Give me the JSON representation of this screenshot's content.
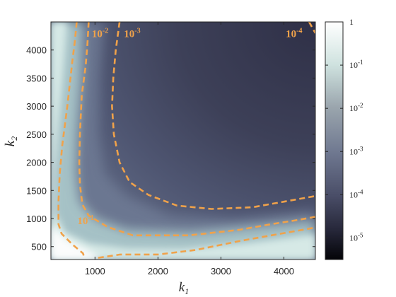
{
  "chart_data": {
    "type": "heatmap",
    "title": "",
    "xlabel": "k",
    "xlabel_sub": "1",
    "ylabel": "k",
    "ylabel_sub": "2",
    "xlim": [
      300,
      4500
    ],
    "ylim": [
      270,
      4500
    ],
    "x_ticks": [
      1000,
      2000,
      3000,
      4000
    ],
    "y_ticks": [
      500,
      1000,
      1500,
      2000,
      2500,
      3000,
      3500,
      4000
    ],
    "colorscale": "log",
    "colorbar": {
      "ticks": [
        {
          "value": 1,
          "base": "1",
          "exp": ""
        },
        {
          "value": 0.1,
          "base": "10",
          "exp": "-1"
        },
        {
          "value": 0.01,
          "base": "10",
          "exp": "-2"
        },
        {
          "value": 0.001,
          "base": "10",
          "exp": "-3"
        },
        {
          "value": 0.0001,
          "base": "10",
          "exp": "-4"
        },
        {
          "value": 1e-05,
          "base": "10",
          "exp": "-5"
        }
      ],
      "min_exp": -5.5,
      "max_exp": 0
    },
    "contour_color": "#f0a24a",
    "contours": [
      {
        "level": 0.1,
        "base": "10",
        "exp": "-1",
        "label_at": [
          720,
          900
        ],
        "points": [
          [
            710,
            4500
          ],
          [
            680,
            4150
          ],
          [
            640,
            3800
          ],
          [
            560,
            3000
          ],
          [
            480,
            2300
          ],
          [
            440,
            1800
          ],
          [
            420,
            1300
          ],
          [
            420,
            900
          ],
          [
            470,
            730
          ],
          [
            640,
            540
          ],
          [
            810,
            380
          ],
          [
            830,
            300
          ]
        ]
      },
      {
        "level": 0.01,
        "base": "10",
        "exp": "-2",
        "label_at": [
          950,
          4230
        ],
        "points": [
          [
            900,
            4500
          ],
          [
            880,
            4100
          ],
          [
            850,
            3700
          ],
          [
            790,
            3200
          ],
          [
            760,
            2500
          ],
          [
            750,
            2000
          ],
          [
            760,
            1600
          ],
          [
            800,
            1250
          ],
          [
            900,
            1050
          ],
          [
            1200,
            850
          ],
          [
            1600,
            700
          ],
          [
            2500,
            700
          ],
          [
            3300,
            800
          ],
          [
            3800,
            900
          ],
          [
            4200,
            970
          ],
          [
            4500,
            1030
          ]
        ]
      },
      {
        "level": 0.001,
        "base": "10",
        "exp": "-3",
        "label_at": [
          1460,
          4230
        ],
        "points": [
          [
            1390,
            4500
          ],
          [
            1330,
            4000
          ],
          [
            1290,
            3500
          ],
          [
            1270,
            3000
          ],
          [
            1300,
            2500
          ],
          [
            1390,
            2000
          ],
          [
            1550,
            1650
          ],
          [
            1850,
            1420
          ],
          [
            2300,
            1230
          ],
          [
            2850,
            1170
          ],
          [
            3500,
            1200
          ],
          [
            4000,
            1300
          ],
          [
            4500,
            1400
          ]
        ]
      },
      {
        "level": 0.0001,
        "base": "10",
        "exp": "-4",
        "label_at": [
          4030,
          4230
        ],
        "points": [
          [
            4400,
            4500
          ],
          [
            4500,
            4300
          ]
        ]
      },
      {
        "level": 0.1,
        "base": "",
        "exp": "",
        "label_at": null,
        "points": [
          [
            1050,
            300
          ],
          [
            1400,
            360
          ],
          [
            2000,
            360
          ],
          [
            2600,
            440
          ],
          [
            3300,
            600
          ],
          [
            3800,
            700
          ],
          [
            4200,
            780
          ],
          [
            4500,
            840
          ]
        ]
      }
    ]
  }
}
